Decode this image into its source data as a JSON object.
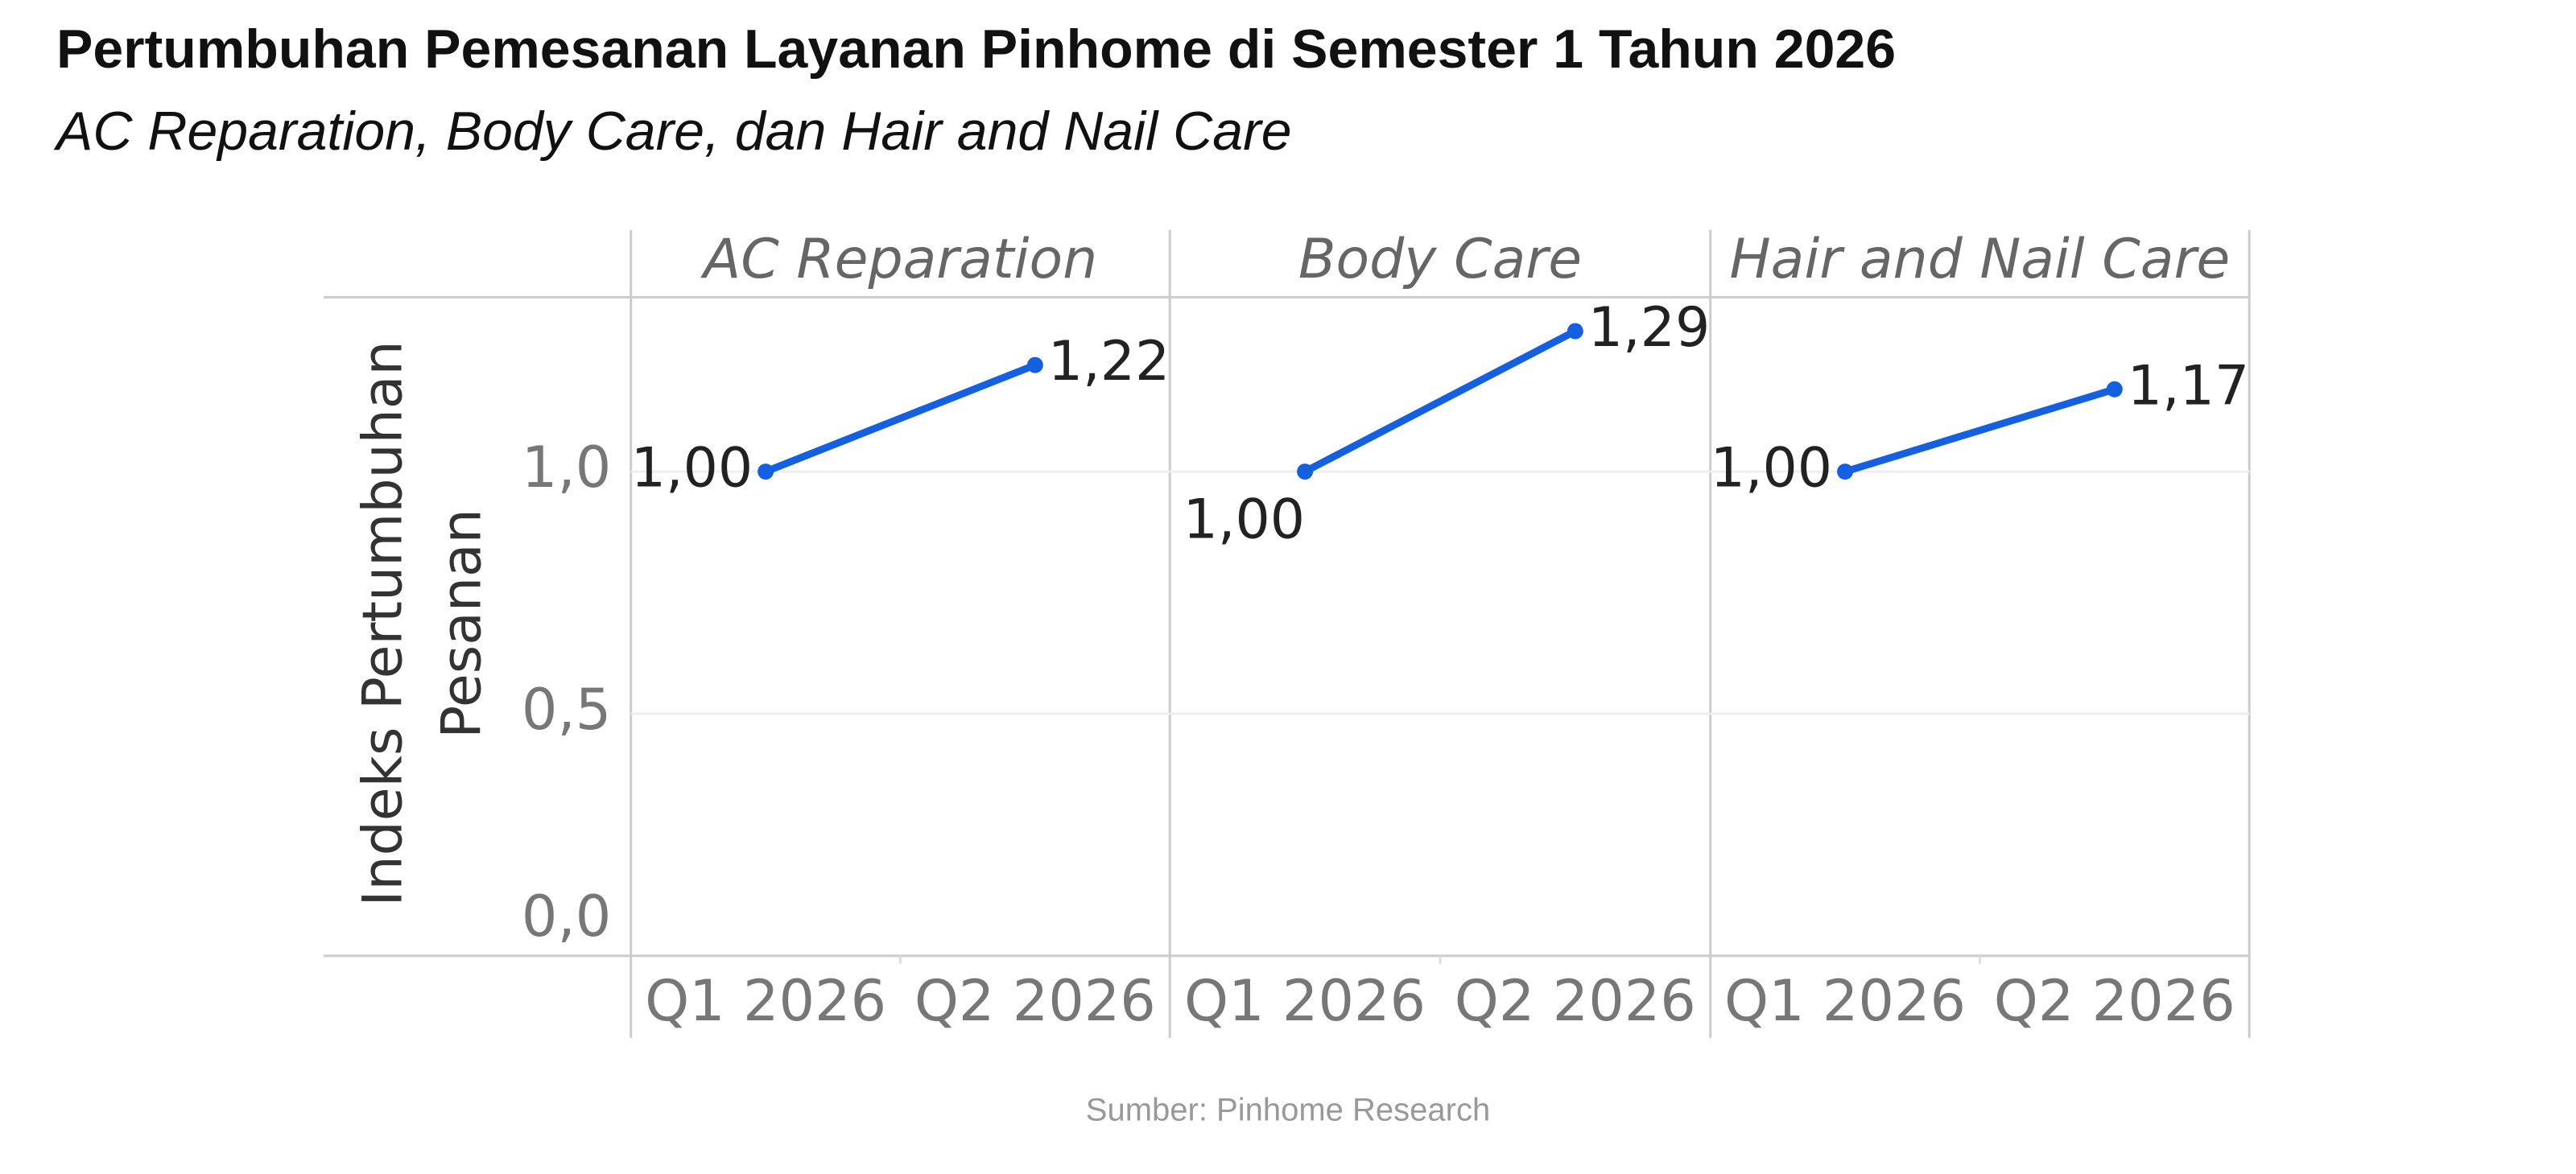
{
  "header": {
    "title": "Pertumbuhan Pemesanan Layanan Pinhome di Semester 1 Tahun 2026",
    "subtitle": "AC Reparation, Body Care, dan Hair and Nail Care"
  },
  "y_label": [
    "Indeks Pertumbuhan",
    "Pesanan"
  ],
  "source": "Sumber: Pinhome Research",
  "chart_data": [
    {
      "type": "line",
      "title": "AC Reparation",
      "categories": [
        "Q1 2026",
        "Q2 2026"
      ],
      "values": [
        1.0,
        1.22
      ],
      "value_labels": [
        "1,00",
        "1,22"
      ],
      "color": "#1460e0",
      "ylim": [
        0,
        1.36
      ],
      "yticks": [
        {
          "value": 0,
          "label": "0,0"
        },
        {
          "value": 0.5,
          "label": "0,5"
        },
        {
          "value": 1,
          "label": "1,0"
        }
      ],
      "grid": true
    },
    {
      "type": "line",
      "title": "Body Care",
      "categories": [
        "Q1 2026",
        "Q2 2026"
      ],
      "values": [
        1.0,
        1.29
      ],
      "value_labels": [
        "1,00",
        "1,29"
      ],
      "color": "#1460e0",
      "ylim": [
        0,
        1.36
      ],
      "yticks": [
        {
          "value": 0,
          "label": "0,0"
        },
        {
          "value": 0.5,
          "label": "0,5"
        },
        {
          "value": 1,
          "label": "1,0"
        }
      ],
      "grid": true
    },
    {
      "type": "line",
      "title": "Hair and Nail Care",
      "categories": [
        "Q1 2026",
        "Q2 2026"
      ],
      "values": [
        1.0,
        1.17
      ],
      "value_labels": [
        "1,00",
        "1,17"
      ],
      "color": "#1460e0",
      "ylim": [
        0,
        1.36
      ],
      "yticks": [
        {
          "value": 0,
          "label": "0,0"
        },
        {
          "value": 0.5,
          "label": "0,5"
        },
        {
          "value": 1,
          "label": "1,0"
        }
      ],
      "grid": true
    }
  ]
}
